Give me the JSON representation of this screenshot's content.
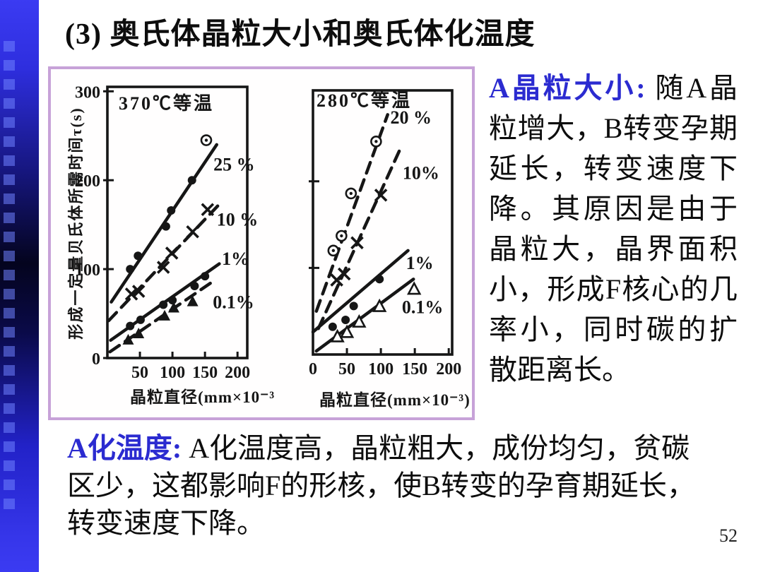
{
  "title": "(3) 奥氏体晶粒大小和奥氏体化温度",
  "page_number": "52",
  "colors": {
    "accent_blue": "#2b2bd0",
    "figure_border": "#c7a2d8",
    "sidebar_blue": "#3b3bf2",
    "ink": "#161616"
  },
  "sections": {
    "grain_size": {
      "lead": "A晶粒大小: ",
      "body": "随A晶粒增大，B转变孕期延长，转变速度下降。其原因是由于晶粒大，晶界面积小，形成F核心的几率小，同时碳的扩散距离长。"
    },
    "temperature": {
      "lead": "A化温度: ",
      "body": "A化温度高，晶粒粗大，成份均匀，贫碳区少，这都影响F的形核，使B转变的孕育期延长，转变速度下降。"
    }
  },
  "chart_data": [
    {
      "type": "scatter",
      "title": "370℃等温",
      "xlabel": "晶粒直径(mm×10⁻³",
      "ylabel": "形成一定量贝氏体所需时间τ(s)",
      "xlim": [
        0,
        215
      ],
      "ylim": [
        0,
        305
      ],
      "xticks": [
        50,
        100,
        150,
        200
      ],
      "yticks": [
        0,
        100,
        200,
        300
      ],
      "show_ytick_labels": true,
      "grid": false,
      "series": [
        {
          "name": "25 %",
          "marker": "dot",
          "last_marker": "odot",
          "dashed": false,
          "trend": [
            [
              6,
              63
            ],
            [
              168,
              240
            ]
          ],
          "points": [
            [
              35,
              100
            ],
            [
              47,
              115
            ],
            [
              90,
              148
            ],
            [
              98,
              166
            ],
            [
              130,
              200
            ],
            [
              152,
              245
            ]
          ],
          "label_pos": [
            163,
            218
          ]
        },
        {
          "name": "10 %",
          "marker": "x",
          "dashed": true,
          "trend": [
            [
              2,
              42
            ],
            [
              176,
              176
            ]
          ],
          "points": [
            [
              37,
              72
            ],
            [
              48,
              75
            ],
            [
              86,
              102
            ],
            [
              99,
              118
            ],
            [
              131,
              142
            ],
            [
              154,
              167
            ]
          ],
          "label_pos": [
            168,
            156
          ]
        },
        {
          "name": "1%",
          "marker": "dot",
          "dashed": false,
          "trend": [
            [
              5,
              20
            ],
            [
              172,
              106
            ]
          ],
          "points": [
            [
              35,
              36
            ],
            [
              51,
              43
            ],
            [
              86,
              60
            ],
            [
              100,
              65
            ],
            [
              134,
              81
            ],
            [
              150,
              92
            ]
          ],
          "label_pos": [
            176,
            112
          ]
        },
        {
          "name": "0.1%",
          "marker": "tri",
          "dashed": true,
          "trend": [
            [
              4,
              7
            ],
            [
              166,
              88
            ]
          ],
          "points": [
            [
              32,
              20
            ],
            [
              48,
              27
            ],
            [
              88,
              47
            ],
            [
              102,
              56
            ],
            [
              131,
              63
            ]
          ],
          "label_pos": [
            162,
            63
          ]
        }
      ]
    },
    {
      "type": "scatter",
      "title": "280℃等温",
      "xlabel": "晶粒直径(mm×10⁻³)",
      "ylabel": "",
      "xlim": [
        0,
        205
      ],
      "ylim": [
        0,
        305
      ],
      "xticks": [
        0,
        50,
        100,
        150,
        200
      ],
      "yticks": [
        100,
        200
      ],
      "show_ytick_labels": false,
      "grid": false,
      "series": [
        {
          "name": "20 %",
          "marker": "odot",
          "dashed": true,
          "trend": [
            [
              5,
              50
            ],
            [
              110,
              277
            ]
          ],
          "points": [
            [
              30,
              120
            ],
            [
              42,
              137
            ],
            [
              56,
              186
            ],
            [
              93,
              246
            ]
          ],
          "label_pos": [
            114,
            274
          ]
        },
        {
          "name": "10%",
          "marker": "x",
          "dashed": true,
          "trend": [
            [
              8,
              30
            ],
            [
              130,
              240
            ]
          ],
          "points": [
            [
              35,
              86
            ],
            [
              46,
              93
            ],
            [
              65,
              129
            ],
            [
              100,
              184
            ]
          ],
          "label_pos": [
            132,
            210
          ]
        },
        {
          "name": "1%",
          "marker": "dot",
          "dashed": false,
          "trend": [
            [
              0,
              26
            ],
            [
              140,
              120
            ]
          ],
          "points": [
            [
              29,
              32
            ],
            [
              48,
              40
            ],
            [
              60,
              56
            ],
            [
              98,
              87
            ]
          ],
          "label_pos": [
            137,
            106
          ]
        },
        {
          "name": "0.1%",
          "marker": "tri-open",
          "dashed": false,
          "trend": [
            [
              5,
              4
            ],
            [
              148,
              87
            ]
          ],
          "points": [
            [
              36,
              20
            ],
            [
              50,
              25
            ],
            [
              68,
              37
            ],
            [
              98,
              55
            ],
            [
              149,
              75
            ]
          ],
          "label_pos": [
            131,
            55
          ]
        }
      ]
    }
  ]
}
